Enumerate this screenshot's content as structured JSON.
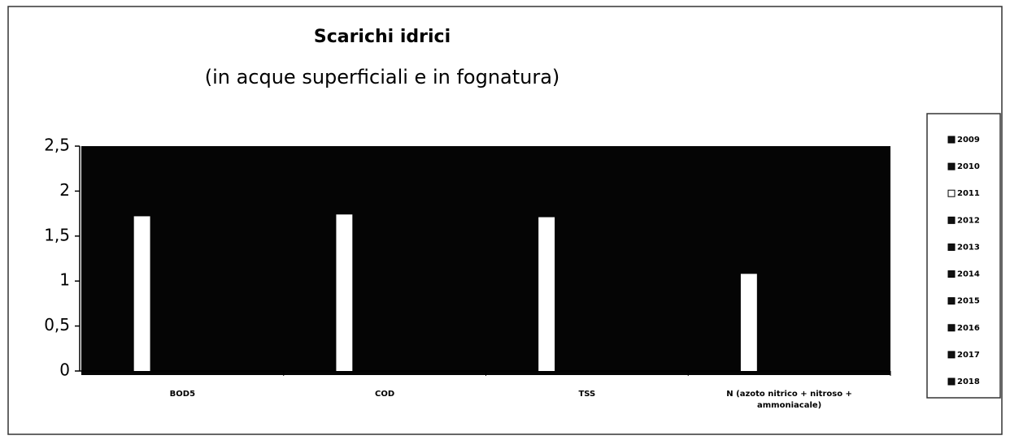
{
  "chart_data": {
    "type": "bar",
    "title": "Scarichi idrici",
    "subtitle": "(in acque superficiali e in fognatura)",
    "categories": [
      "BOD5",
      "COD",
      "TSS",
      "N (azoto nitrico + nitroso + ammoniacale)"
    ],
    "series": [
      {
        "name": "2009",
        "color": "#111111",
        "values": [
          null,
          null,
          null,
          null
        ]
      },
      {
        "name": "2010",
        "color": "#111111",
        "values": [
          null,
          null,
          null,
          null
        ]
      },
      {
        "name": "2011",
        "color": "#ffffff",
        "values": [
          1.72,
          1.74,
          1.71,
          1.08
        ]
      },
      {
        "name": "2012",
        "color": "#111111",
        "values": [
          null,
          null,
          null,
          null
        ]
      },
      {
        "name": "2013",
        "color": "#111111",
        "values": [
          null,
          null,
          null,
          null
        ]
      },
      {
        "name": "2014",
        "color": "#111111",
        "values": [
          null,
          null,
          null,
          null
        ]
      },
      {
        "name": "2015",
        "color": "#111111",
        "values": [
          null,
          null,
          null,
          null
        ]
      },
      {
        "name": "2016",
        "color": "#111111",
        "values": [
          null,
          null,
          null,
          null
        ]
      },
      {
        "name": "2017",
        "color": "#111111",
        "values": [
          null,
          null,
          null,
          null
        ]
      },
      {
        "name": "2018",
        "color": "#111111",
        "values": [
          null,
          null,
          null,
          null
        ]
      }
    ],
    "ylim": [
      0,
      2.5
    ],
    "yticks": [
      0,
      {
        "value": 0.5,
        "label": "0,5"
      },
      1,
      {
        "value": 1.5,
        "label": "1,5"
      },
      2,
      {
        "value": 2.5,
        "label": "2,5"
      }
    ],
    "plot_background": "#050505",
    "legend": "right"
  }
}
